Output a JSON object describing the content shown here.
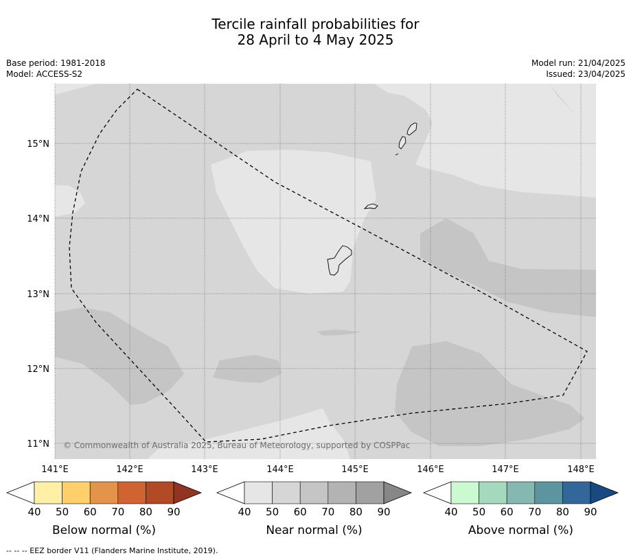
{
  "title_line1": "Tercile rainfall probabilities for",
  "title_line2": "28 April to 4 May 2025",
  "base_period": "Base period: 1981-2018",
  "model": "Model: ACCESS-S2",
  "model_run": "Model run: 21/04/2025",
  "issued": "Issued: 23/04/2025",
  "copyright": "© Commonwealth of Australia 2025, Bureau of Meteorology, supported by COSPPac",
  "lat_labels": [
    "15°N",
    "14°N",
    "13°N",
    "12°N",
    "11°N"
  ],
  "lon_labels": [
    "141°E",
    "142°E",
    "143°E",
    "144°E",
    "145°E",
    "146°E",
    "147°E",
    "148°E"
  ],
  "legends": [
    {
      "name": "below",
      "title": "Below normal (%)",
      "colors": [
        "#fff0a5",
        "#fecf6a",
        "#e3944a",
        "#cf6432",
        "#b24a26",
        "#923422"
      ],
      "ticks": [
        "40",
        "50",
        "60",
        "70",
        "80",
        "90"
      ]
    },
    {
      "name": "near",
      "title": "Near normal (%)",
      "colors": [
        "#e6e6e6",
        "#d6d6d6",
        "#c5c5c5",
        "#b3b3b3",
        "#a1a1a1",
        "#878787"
      ],
      "ticks": [
        "40",
        "50",
        "60",
        "70",
        "80",
        "90"
      ]
    },
    {
      "name": "above",
      "title": "Above normal (%)",
      "colors": [
        "#cbfad0",
        "#a5d9bd",
        "#84b8b1",
        "#5c949f",
        "#336699",
        "#174a80"
      ],
      "ticks": [
        "40",
        "50",
        "60",
        "70",
        "80",
        "90"
      ]
    }
  ],
  "footnote": "--  --  -- EEZ border V11 (Flanders Marine Institute, 2019).",
  "colors": {
    "near_40_50": "#e6e6e6",
    "near_50_60": "#d6d6d6",
    "near_60_70": "#c5c5c5"
  }
}
